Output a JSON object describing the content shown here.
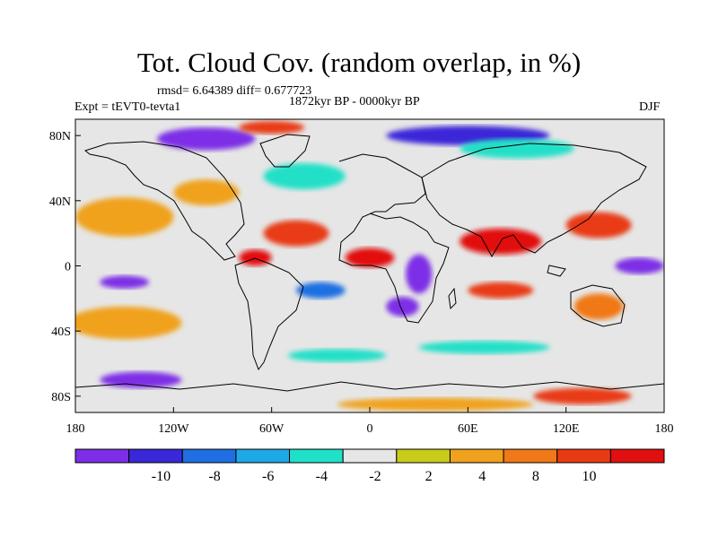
{
  "title": "Tot. Cloud Cov. (random overlap, in %)",
  "stats_line": "rmsd= 6.64389 diff= 0.677723",
  "period_line": "1872kyr BP - 0000kyr BP",
  "experiment": "Expt = tEVT0-tevta1",
  "season": "DJF",
  "axes": {
    "x_ticks": [
      {
        "lon": -180,
        "label": "180"
      },
      {
        "lon": -120,
        "label": "120W"
      },
      {
        "lon": -60,
        "label": "60W"
      },
      {
        "lon": 0,
        "label": "0"
      },
      {
        "lon": 60,
        "label": "60E"
      },
      {
        "lon": 120,
        "label": "120E"
      },
      {
        "lon": 180,
        "label": "180"
      }
    ],
    "y_ticks": [
      {
        "lat": 80,
        "label": "80N"
      },
      {
        "lat": 40,
        "label": "40N"
      },
      {
        "lat": 0,
        "label": "0"
      },
      {
        "lat": -40,
        "label": "40S"
      },
      {
        "lat": -80,
        "label": "80S"
      }
    ],
    "lon_range": [
      -180,
      180
    ],
    "lat_range": [
      -90,
      90
    ]
  },
  "colorbar": {
    "colors": [
      "#7d2ee6",
      "#3a28d8",
      "#1f6fe2",
      "#1ea8e6",
      "#20e0c8",
      "#e6e6e6",
      "#c8cc1a",
      "#f0a21e",
      "#f07818",
      "#e83a12",
      "#e20f10"
    ],
    "labels": [
      "-10",
      "-8",
      "-6",
      "-4",
      "-2",
      "2",
      "4",
      "8",
      "10"
    ]
  },
  "map": {
    "background_color": "#e6e6e6",
    "regions": [
      {
        "name": "north-pacific-warm",
        "level": 7,
        "lon": -150,
        "lat": 30,
        "rlon": 30,
        "rlat": 12
      },
      {
        "name": "north-atlantic-mix",
        "level": 4,
        "lon": -40,
        "lat": 55,
        "rlon": 25,
        "rlat": 8
      },
      {
        "name": "arctic-purple",
        "level": 0,
        "lon": -100,
        "lat": 78,
        "rlon": 30,
        "rlat": 7
      },
      {
        "name": "arctic-blue",
        "level": 1,
        "lon": 60,
        "lat": 80,
        "rlon": 50,
        "rlat": 6
      },
      {
        "name": "arctic-red",
        "level": 9,
        "lon": -60,
        "lat": 85,
        "rlon": 20,
        "rlat": 4
      },
      {
        "name": "eurasia-cyan",
        "level": 4,
        "lon": 90,
        "lat": 72,
        "rlon": 35,
        "rlat": 6
      },
      {
        "name": "north-orange",
        "level": 7,
        "lon": -100,
        "lat": 45,
        "rlon": 20,
        "rlat": 8
      },
      {
        "name": "mid-atlantic-red",
        "level": 9,
        "lon": -45,
        "lat": 20,
        "rlon": 20,
        "rlat": 8
      },
      {
        "name": "caribbean-red",
        "level": 10,
        "lon": -70,
        "lat": 5,
        "rlon": 10,
        "rlat": 5
      },
      {
        "name": "africa-red",
        "level": 10,
        "lon": 0,
        "lat": 5,
        "rlon": 15,
        "rlat": 6
      },
      {
        "name": "africa-purple",
        "level": 0,
        "lon": 30,
        "lat": -5,
        "rlon": 8,
        "rlat": 12
      },
      {
        "name": "africa-south-purple",
        "level": 0,
        "lon": 20,
        "lat": -25,
        "rlon": 10,
        "rlat": 6
      },
      {
        "name": "indian-ocean-red",
        "level": 10,
        "lon": 80,
        "lat": 15,
        "rlon": 25,
        "rlat": 8
      },
      {
        "name": "pacific-warm",
        "level": 9,
        "lon": 140,
        "lat": 25,
        "rlon": 20,
        "rlat": 8
      },
      {
        "name": "indian-south-red",
        "level": 9,
        "lon": 80,
        "lat": -15,
        "rlon": 20,
        "rlat": 5
      },
      {
        "name": "australia-orange",
        "level": 8,
        "lon": 140,
        "lat": -25,
        "rlon": 15,
        "rlat": 8
      },
      {
        "name": "pacific-purple",
        "level": 0,
        "lon": 165,
        "lat": 0,
        "rlon": 15,
        "rlat": 5
      },
      {
        "name": "east-pacific-purple",
        "level": 0,
        "lon": -150,
        "lat": -10,
        "rlon": 15,
        "rlat": 4
      },
      {
        "name": "south-pacific-orange",
        "level": 7,
        "lon": -150,
        "lat": -35,
        "rlon": 35,
        "rlat": 10
      },
      {
        "name": "south-atlantic-blue",
        "level": 2,
        "lon": -30,
        "lat": -15,
        "rlon": 15,
        "rlat": 5
      },
      {
        "name": "southern-cyan",
        "level": 4,
        "lon": -20,
        "lat": -55,
        "rlon": 30,
        "rlat": 4
      },
      {
        "name": "southern-indian-cyan",
        "level": 4,
        "lon": 70,
        "lat": -50,
        "rlon": 40,
        "rlat": 4
      },
      {
        "name": "antarctic-purple",
        "level": 0,
        "lon": -140,
        "lat": -70,
        "rlon": 25,
        "rlat": 5
      },
      {
        "name": "antarctic-orange",
        "level": 7,
        "lon": 40,
        "lat": -85,
        "rlon": 60,
        "rlat": 4
      },
      {
        "name": "antarctic-red",
        "level": 9,
        "lon": 130,
        "lat": -80,
        "rlon": 30,
        "rlat": 5
      }
    ]
  }
}
